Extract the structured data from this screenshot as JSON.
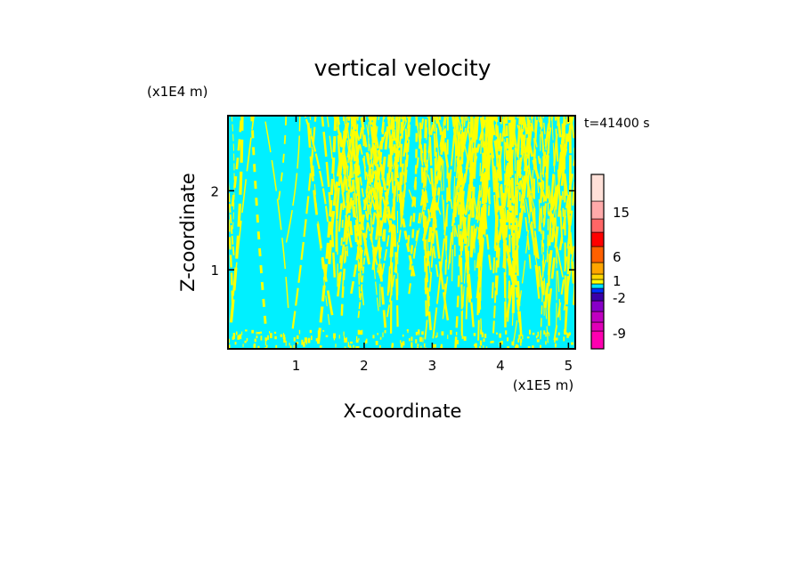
{
  "chart_data": {
    "type": "heatmap",
    "title": "vertical velocity",
    "time_label": "t=41400 s",
    "xlabel": "X-coordinate",
    "ylabel": "Z-coordinate",
    "x_unit": "(x1E5 m)",
    "y_unit": "(x1E4 m)",
    "xlim": [
      0,
      5.1
    ],
    "ylim": [
      0,
      2.95
    ],
    "xticks": [
      "1",
      "2",
      "3",
      "4",
      "5"
    ],
    "yticks": [
      "1",
      "2"
    ],
    "colorbar": {
      "levels": [
        {
          "color": "#ff00b0"
        },
        {
          "color": "#e000b8"
        },
        {
          "color": "#c000c0"
        },
        {
          "color": "#8800c8"
        },
        {
          "color": "#3a00a8"
        },
        {
          "color": "#0030ff"
        },
        {
          "color": "#00e5ff"
        },
        {
          "color": "#ffff00"
        },
        {
          "color": "#ffd700"
        },
        {
          "color": "#ffa500"
        },
        {
          "color": "#ff6000"
        },
        {
          "color": "#ff0000"
        },
        {
          "color": "#ff6666"
        },
        {
          "color": "#ffaaaa"
        },
        {
          "color": "#ffe0d8"
        }
      ],
      "tick_labels": [
        "15",
        "6",
        "1",
        "-2",
        "-9"
      ]
    },
    "colors": {
      "background_field": "#00f0ff",
      "updraft": "#ffff00"
    }
  }
}
